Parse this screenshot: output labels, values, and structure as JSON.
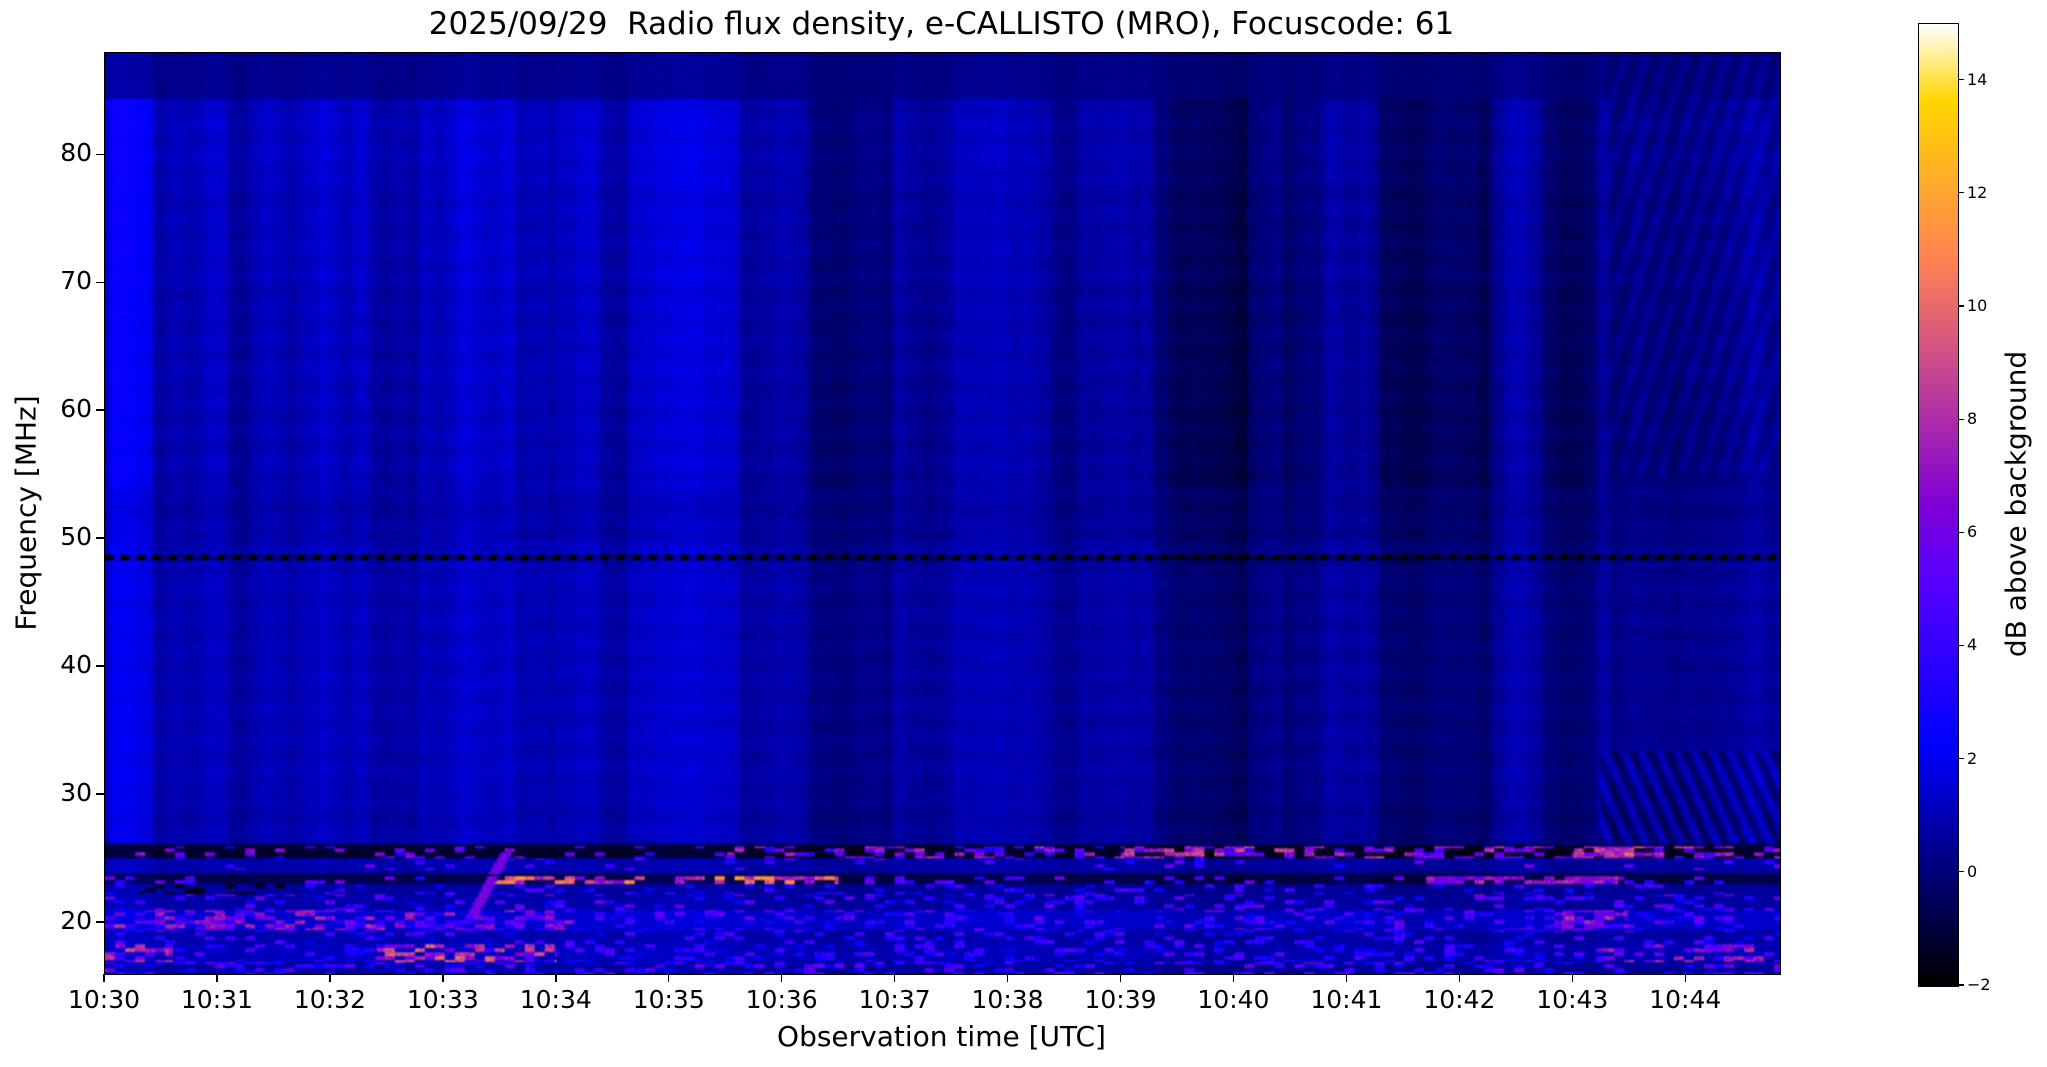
{
  "chart_data": {
    "type": "heatmap",
    "title": "2025/09/29  Radio flux density, e-CALLISTO (MRO), Focuscode: 61",
    "xlabel": "Observation time [UTC]",
    "ylabel": "Frequency [MHz]",
    "colorbar_label": "dB above background",
    "colormap": "gnuplot2",
    "x_range_utc": [
      "10:30:00",
      "10:44:50"
    ],
    "x_span_minutes": 14.83,
    "xticks": [
      "10:30",
      "10:31",
      "10:32",
      "10:33",
      "10:34",
      "10:35",
      "10:36",
      "10:37",
      "10:38",
      "10:39",
      "10:40",
      "10:41",
      "10:42",
      "10:43",
      "10:44"
    ],
    "yticks": [
      20,
      30,
      40,
      50,
      60,
      70,
      80
    ],
    "ylim": [
      16,
      88
    ],
    "clim": [
      -2,
      15
    ],
    "colorbar_ticks": [
      {
        "value": 14,
        "label": "14"
      },
      {
        "value": 12,
        "label": "12"
      },
      {
        "value": 10,
        "label": "10"
      },
      {
        "value": 8,
        "label": "8"
      },
      {
        "value": 6,
        "label": "6"
      },
      {
        "value": 4,
        "label": "4"
      },
      {
        "value": 2,
        "label": "2"
      },
      {
        "value": 0,
        "label": "0"
      },
      {
        "value": -2,
        "label": "−2"
      }
    ],
    "grid": false,
    "features": {
      "background_db": 0.8,
      "rfi_region_mhz": [
        16,
        26
      ],
      "bright_time_bands": [
        [
          0.0,
          0.45,
          1.3
        ],
        [
          1.85,
          2.35,
          0.5
        ],
        [
          2.75,
          3.65,
          0.7
        ],
        [
          3.95,
          4.4,
          0.45
        ],
        [
          4.6,
          5.65,
          0.75
        ],
        [
          7.85,
          8.3,
          0.35
        ],
        [
          10.8,
          11.2,
          0.5
        ],
        [
          12.35,
          12.65,
          0.3
        ]
      ],
      "dark_time_bands": [
        [
          1.05,
          1.3,
          -0.5
        ],
        [
          6.2,
          7.0,
          -0.85
        ],
        [
          7.05,
          7.55,
          -0.55
        ],
        [
          8.35,
          8.65,
          -0.45
        ],
        [
          9.25,
          10.15,
          -0.95
        ],
        [
          10.4,
          10.78,
          -0.55
        ],
        [
          11.25,
          12.3,
          -0.95
        ],
        [
          12.7,
          13.25,
          -0.85
        ],
        [
          13.3,
          14.83,
          -0.5
        ]
      ],
      "dark_lines": [
        {
          "f": 48.5,
          "w": 0.22,
          "dashed": true
        },
        {
          "f": 26.05,
          "w": 0.12,
          "dashed": false
        },
        {
          "f": 23.72,
          "w": 0.1,
          "dashed": false
        }
      ],
      "diagonal_ripples": [
        {
          "t0": 13.25,
          "f0": 26,
          "f1": 33.5,
          "amp": 0.85,
          "kt": 40,
          "kf": 2.0
        },
        {
          "t0": 13.3,
          "f0": 55,
          "f1": 88,
          "amp": 0.3,
          "kt": 35,
          "kf": -1.2
        }
      ],
      "drift_burst": {
        "t0": 3.25,
        "t1": 3.55,
        "f0": 20.5,
        "f1": 25.5,
        "amp": 6
      },
      "rfi_bands": [
        {
          "f0": 25.0,
          "f1": 25.9,
          "base": -1.3,
          "default": {
            "p": 0.18,
            "a0": 3,
            "a1": 7
          },
          "segments": [
            {
              "t0": 5.5,
              "t1": 9.0,
              "p": 0.35,
              "a0": 3,
              "a1": 8
            },
            {
              "t0": 9.0,
              "t1": 14.83,
              "p": 0.5,
              "a0": 4,
              "a1": 9
            },
            {
              "t0": 13.0,
              "t1": 13.7,
              "p": 0.75,
              "a0": 6,
              "a1": 11
            }
          ]
        },
        {
          "f0": 24.1,
          "f1": 25.0,
          "base": 0.85,
          "default": {
            "p": 0.08,
            "a0": 3,
            "a1": 6
          },
          "segments": []
        },
        {
          "f0": 23.0,
          "f1": 23.6,
          "base": -0.7,
          "default": {
            "p": 0.12,
            "a0": 3,
            "a1": 6
          },
          "segments": [
            {
              "t0": 3.4,
              "t1": 6.5,
              "p": 0.55,
              "a0": 6,
              "a1": 12
            },
            {
              "t0": 11.7,
              "t1": 13.4,
              "p": 0.85,
              "a0": 5,
              "a1": 8
            }
          ]
        },
        {
          "f0": 22.2,
          "f1": 23.0,
          "base": 0.6,
          "default": {
            "p": 0.15,
            "a0": 2,
            "a1": 5
          },
          "segments": [
            {
              "t0": 0.3,
              "t1": 1.7,
              "p": 0.3,
              "a0": -1.8,
              "a1": -1.8
            }
          ]
        },
        {
          "f0": 21.0,
          "f1": 22.2,
          "base": 0.75,
          "default": {
            "p": 0.2,
            "a0": 2,
            "a1": 6
          },
          "segments": []
        },
        {
          "f0": 19.3,
          "f1": 21.0,
          "base": 1.4,
          "default": {
            "p": 0.3,
            "a0": 2,
            "a1": 6
          },
          "segments": [
            {
              "t0": 0.0,
              "t1": 4.2,
              "p": 0.55,
              "a0": 3,
              "a1": 8
            },
            {
              "t0": 12.9,
              "t1": 13.5,
              "p": 0.7,
              "a0": 4,
              "a1": 8
            }
          ]
        },
        {
          "f0": 18.3,
          "f1": 19.3,
          "base": 0.85,
          "default": {
            "p": 0.18,
            "a0": 2,
            "a1": 5
          },
          "segments": []
        },
        {
          "f0": 16.8,
          "f1": 18.3,
          "base": 1.1,
          "default": {
            "p": 0.25,
            "a0": 2,
            "a1": 5
          },
          "segments": [
            {
              "t0": 0.0,
              "t1": 0.6,
              "p": 0.7,
              "a0": 4,
              "a1": 9
            },
            {
              "t0": 2.4,
              "t1": 4.0,
              "p": 0.6,
              "a0": 4,
              "a1": 10
            },
            {
              "t0": 13.2,
              "t1": 14.7,
              "p": 0.5,
              "a0": 4,
              "a1": 8
            }
          ]
        },
        {
          "f0": 16.0,
          "f1": 16.8,
          "base": 0.7,
          "default": {
            "p": 0.3,
            "a0": 2,
            "a1": 6
          },
          "segments": []
        }
      ]
    }
  }
}
